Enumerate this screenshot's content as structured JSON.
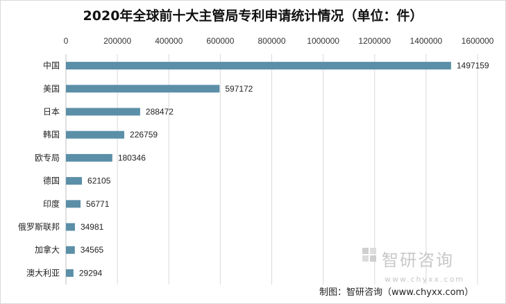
{
  "chart_data": {
    "type": "bar",
    "orientation": "horizontal",
    "title": "2020年全球前十大主管局专利申请统计情况（单位：件）",
    "categories": [
      "中国",
      "美国",
      "日本",
      "韩国",
      "欧专局",
      "德国",
      "印度",
      "俄罗斯联邦",
      "加拿大",
      "澳大利亚"
    ],
    "values": [
      1497159,
      597172,
      288472,
      226759,
      180346,
      62105,
      56771,
      34981,
      34565,
      29294
    ],
    "data_labels": [
      "1497159",
      "597172",
      "288472",
      "226759",
      "180346",
      "62105",
      "56771",
      "34981",
      "34565",
      "29294"
    ],
    "xlim": [
      0,
      1600000
    ],
    "xticks": [
      0,
      200000,
      400000,
      600000,
      800000,
      1000000,
      1200000,
      1400000,
      1600000
    ],
    "xtick_labels": [
      "0",
      "200000",
      "400000",
      "600000",
      "800000",
      "1000000",
      "1200000",
      "1400000",
      "1600000"
    ],
    "axis_position": "top",
    "grid": true,
    "bar_color": "#5b8fa8"
  },
  "watermark": {
    "name": "智研咨询",
    "url": "www.chyxx.com"
  },
  "source": "制图：智研咨询（www.chyxx.com）"
}
